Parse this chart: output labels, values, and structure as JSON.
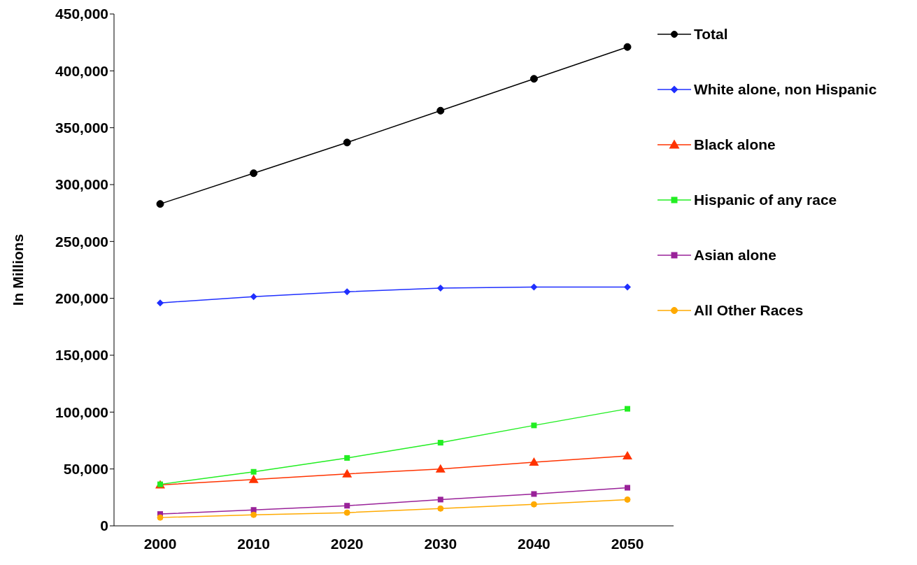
{
  "chart_data": {
    "type": "line",
    "ylabel": "In Millions",
    "categories": [
      "2000",
      "2010",
      "2020",
      "2030",
      "2040",
      "2050"
    ],
    "series": [
      {
        "name": "Total",
        "color": "#000000",
        "marker": "circle",
        "values": [
          283000,
          310000,
          337000,
          365000,
          393000,
          421000
        ]
      },
      {
        "name": "White alone, non Hispanic",
        "color": "#1f2fff",
        "marker": "diamond",
        "values": [
          196000,
          201500,
          205800,
          209000,
          210000,
          210000
        ]
      },
      {
        "name": "Black alone",
        "color": "#ff3300",
        "marker": "triangle",
        "values": [
          35900,
          40800,
          45700,
          49900,
          56000,
          61500
        ]
      },
      {
        "name": "Hispanic of any race",
        "color": "#22ee22",
        "marker": "square",
        "values": [
          36500,
          47500,
          59700,
          73100,
          88300,
          102900
        ]
      },
      {
        "name": "Asian alone",
        "color": "#992299",
        "marker": "square",
        "values": [
          10400,
          14000,
          17700,
          23100,
          28000,
          33500
        ]
      },
      {
        "name": "All Other Races",
        "color": "#ffaa00",
        "marker": "circle",
        "values": [
          7300,
          9700,
          11600,
          15200,
          18900,
          23100
        ]
      }
    ],
    "ylim": [
      0,
      450000
    ],
    "yticks": [
      0,
      {
        "value": 50000,
        "label": "50,000"
      },
      {
        "value": 100000,
        "label": "100,000"
      },
      {
        "value": 150000,
        "label": "150,000"
      },
      {
        "value": 200000,
        "label": "200,000"
      },
      {
        "value": 250000,
        "label": "250,000"
      },
      {
        "value": 300000,
        "label": "300,000"
      },
      {
        "value": 350000,
        "label": "350,000"
      },
      {
        "value": 400000,
        "label": "400,000"
      },
      {
        "value": 450000,
        "label": "450,000"
      }
    ],
    "grid": false,
    "legend": "right",
    "line_style": "solid"
  }
}
